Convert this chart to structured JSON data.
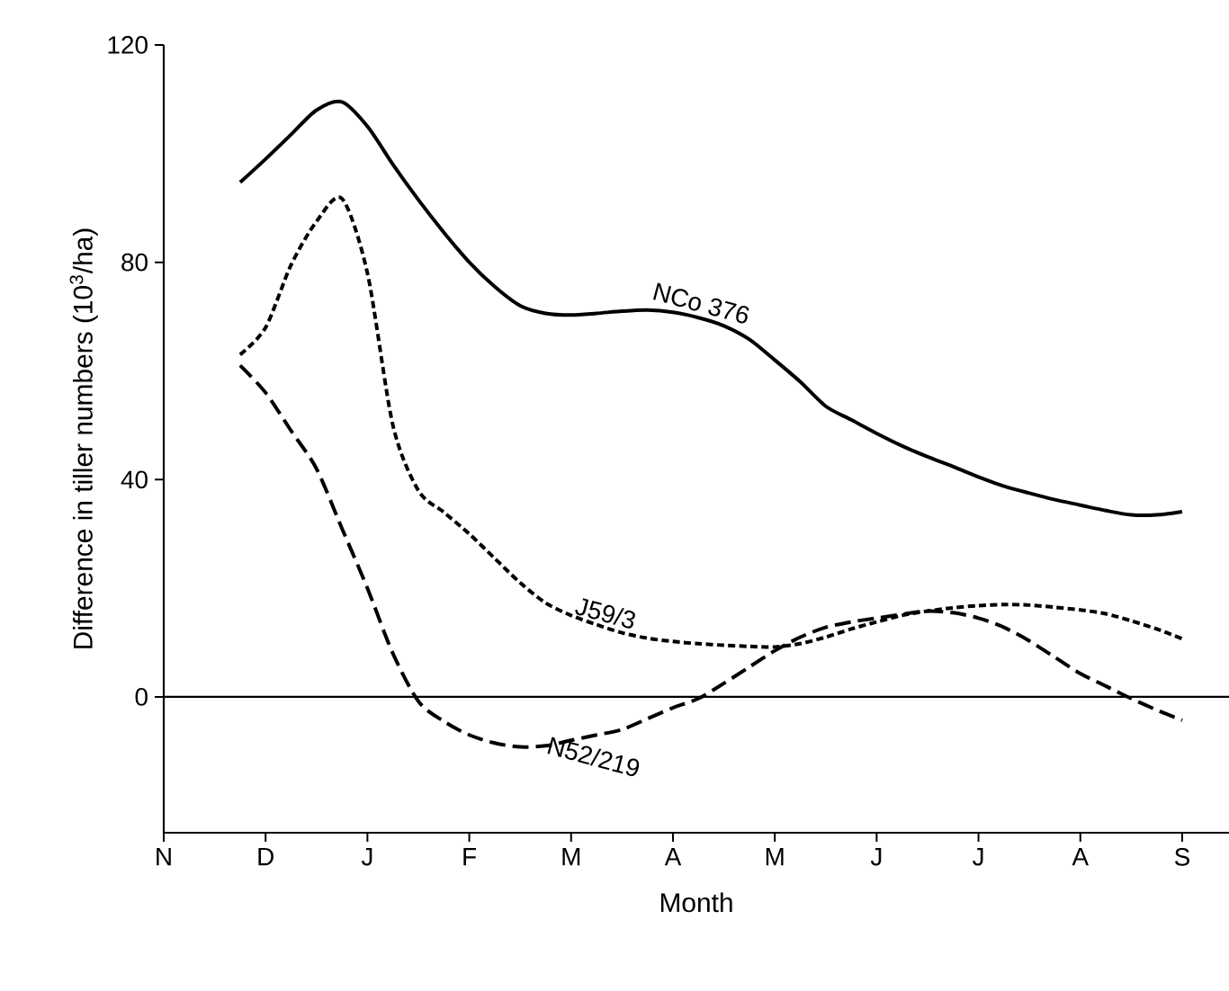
{
  "chart_data": {
    "type": "line",
    "xlabel": "Month",
    "ylabel": "Difference in tiller numbers (10$^{3}$/ha)",
    "categories": [
      "N",
      null,
      null,
      null,
      "D",
      null,
      null,
      null,
      "J",
      null,
      null,
      null,
      "F",
      null,
      null,
      null,
      "M",
      null,
      null,
      null,
      "A",
      null,
      null,
      null,
      "M",
      null,
      null,
      null,
      "J",
      null,
      null,
      null,
      "J",
      null,
      null,
      null,
      "A",
      null,
      null,
      null,
      "S"
    ],
    "ylim": [
      -25,
      120
    ],
    "yticks": [
      0,
      40,
      80,
      120
    ],
    "grid": false,
    "legend": false,
    "ref_lines": [
      {
        "axis": "y",
        "value": 0,
        "color": "#000000",
        "line_style": "solid"
      }
    ],
    "series": [
      {
        "name": "NCo 376",
        "color": "#000000",
        "line_style": "solid",
        "values": [
          null,
          null,
          null,
          94.7,
          99,
          103.5,
          108,
          109.5,
          105,
          98,
          91.5,
          85.5,
          80,
          75.5,
          72,
          70.6,
          70.3,
          70.6,
          71,
          71.2,
          70.8,
          69.8,
          68.3,
          65.8,
          62,
          58,
          53.5,
          51,
          48.5,
          46.2,
          44.2,
          42.4,
          40.5,
          38.8,
          37.5,
          36.3,
          35.3,
          34.3,
          33.5,
          33.5,
          34.1
        ]
      },
      {
        "name": "J59/3",
        "color": "#000000",
        "line_style": "dotted",
        "values": [
          null,
          null,
          null,
          63,
          68,
          79.5,
          87.5,
          91.7,
          78,
          50,
          38,
          34,
          30,
          25.5,
          21,
          17.3,
          15,
          13.3,
          11.8,
          10.8,
          10.2,
          9.8,
          9.5,
          9.3,
          9.2,
          9.8,
          11,
          12.5,
          13.8,
          15,
          15.8,
          16.4,
          16.8,
          17,
          16.9,
          16.5,
          16,
          15.3,
          14,
          12.5,
          10.7
        ]
      },
      {
        "name": "N52/219",
        "color": "#000000",
        "line_style": "dashed",
        "values": [
          null,
          null,
          null,
          61,
          56,
          49,
          42,
          31,
          20,
          8,
          -0.8,
          -4.5,
          -7,
          -8.5,
          -9.2,
          -9,
          -8,
          -7,
          -6,
          -4,
          -2,
          -0.3,
          2.5,
          5.5,
          8.5,
          11,
          12.8,
          13.8,
          14.5,
          15.2,
          15.8,
          15.5,
          14.5,
          12.8,
          10.3,
          7.3,
          4.3,
          2,
          -0.3,
          -2.4,
          -4.3
        ]
      }
    ]
  }
}
